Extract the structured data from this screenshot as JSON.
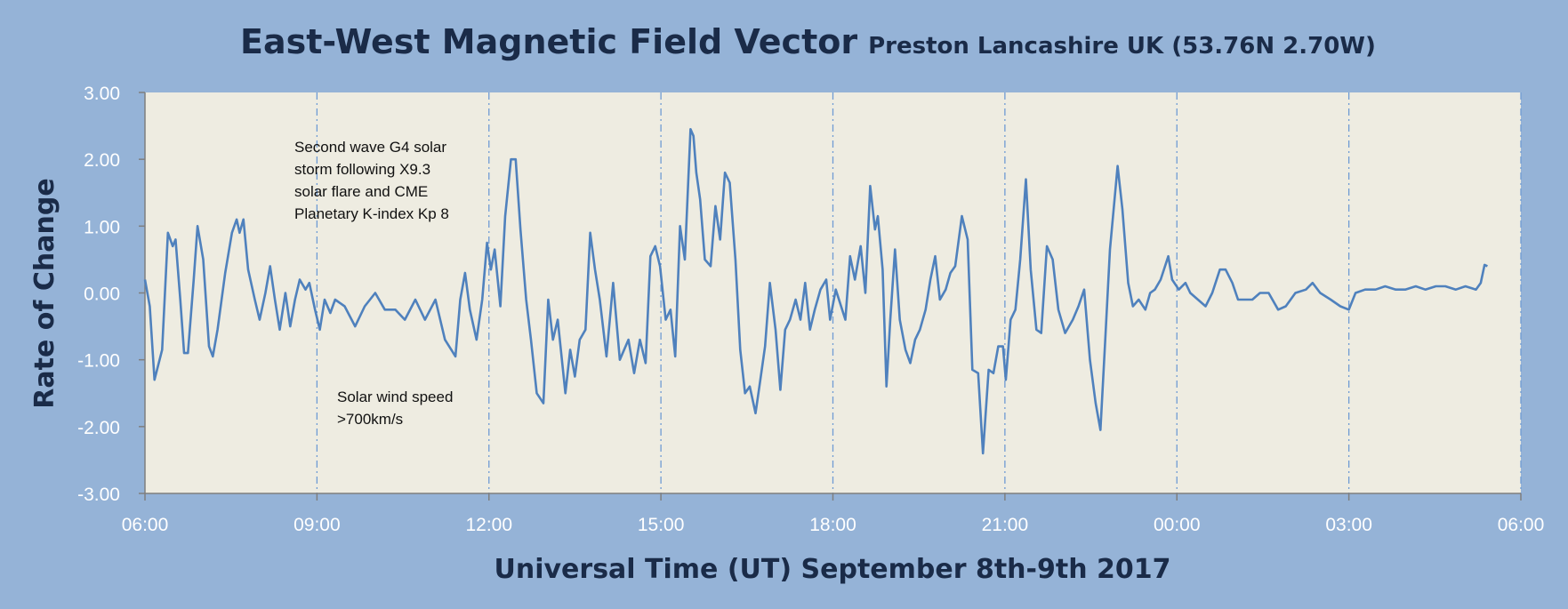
{
  "chart_data": {
    "type": "line",
    "title": "East-West Magnetic Field Vector",
    "subtitle": "Preston Lancashire UK (53.76N 2.70W)",
    "xlabel": "Universal Time (UT) September 8th-9th 2017",
    "ylabel": "Rate of Change",
    "x_units": "minutes since 06:00 UT September 8th",
    "xlim": [
      0,
      1440
    ],
    "ylim": [
      -3,
      3
    ],
    "x_tick_labels": [
      "06:00",
      "09:00",
      "12:00",
      "15:00",
      "18:00",
      "21:00",
      "00:00",
      "03:00",
      "06:00"
    ],
    "y_tick_labels": [
      "3.00",
      "2.00",
      "1.00",
      "0.00",
      "-1.00",
      "-2.00",
      "-3.00"
    ],
    "y_ticks": [
      3,
      2,
      1,
      0,
      -1,
      -2,
      -3
    ],
    "grid": "vertical dash-dot at 3-hour intervals",
    "legend": "none",
    "annotations": [
      {
        "lines": [
          "Second wave G4 solar",
          "storm following X9.3",
          "solar flare and CME",
          "Planetary K-index Kp 8"
        ]
      },
      {
        "lines": [
          "Solar wind speed",
          ">700km/s"
        ]
      }
    ],
    "series": [
      {
        "name": "East-West rate of change",
        "color": "#4f81bd",
        "x": [
          0,
          5,
          10,
          18,
          24,
          29,
          32,
          37,
          41,
          45,
          51,
          55,
          61,
          67,
          71,
          76,
          84,
          91,
          96,
          99,
          103,
          108,
          115,
          120,
          126,
          131,
          136,
          141,
          147,
          152,
          157,
          162,
          168,
          172,
          178,
          183,
          188,
          194,
          199,
          209,
          220,
          230,
          241,
          251,
          262,
          272,
          283,
          293,
          304,
          314,
          325,
          330,
          335,
          340,
          347,
          353,
          358,
          362,
          366,
          372,
          377,
          383,
          388,
          393,
          399,
          404,
          410,
          417,
          422,
          427,
          432,
          440,
          445,
          450,
          455,
          461,
          466,
          471,
          476,
          483,
          490,
          497,
          506,
          512,
          518,
          524,
          529,
          534,
          539,
          545,
          550,
          555,
          560,
          565,
          571,
          574,
          577,
          581,
          586,
          592,
          597,
          602,
          607,
          612,
          618,
          623,
          628,
          633,
          639,
          644,
          649,
          654,
          660,
          665,
          670,
          675,
          681,
          686,
          691,
          696,
          701,
          707,
          713,
          717,
          723,
          733,
          738,
          743,
          749,
          754,
          759,
          764,
          767,
          772,
          776,
          780,
          785,
          790,
          796,
          801,
          806,
          811,
          817,
          822,
          827,
          832,
          838,
          843,
          848,
          855,
          861,
          866,
          872,
          877,
          883,
          888,
          893,
          898,
          901,
          906,
          911,
          916,
          922,
          927,
          933,
          938,
          944,
          950,
          956,
          963,
          971,
          977,
          983,
          989,
          995,
          1000,
          1005,
          1010,
          1018,
          1023,
          1029,
          1034,
          1040,
          1047,
          1052,
          1057,
          1063,
          1071,
          1075,
          1082,
          1089,
          1094,
          1102,
          1110,
          1117,
          1125,
          1131,
          1138,
          1144,
          1152,
          1159,
          1167,
          1176,
          1186,
          1194,
          1204,
          1215,
          1222,
          1230,
          1241,
          1251,
          1260,
          1267,
          1277,
          1288,
          1298,
          1309,
          1319,
          1330,
          1340,
          1351,
          1361,
          1372,
          1382,
          1393,
          1398,
          1402,
          1405
        ],
        "y": [
          0.2,
          -0.2,
          -1.3,
          -0.85,
          0.9,
          0.7,
          0.8,
          -0.1,
          -0.9,
          -0.9,
          0.2,
          1.0,
          0.5,
          -0.8,
          -0.95,
          -0.55,
          0.3,
          0.9,
          1.1,
          0.9,
          1.1,
          0.35,
          -0.1,
          -0.4,
          0,
          0.4,
          -0.1,
          -0.55,
          0,
          -0.5,
          -0.1,
          0.2,
          0.05,
          0.15,
          -0.25,
          -0.55,
          -0.1,
          -0.3,
          -0.1,
          -0.2,
          -0.5,
          -0.2,
          0,
          -0.25,
          -0.25,
          -0.4,
          -0.1,
          -0.4,
          -0.1,
          -0.7,
          -0.95,
          -0.1,
          0.3,
          -0.25,
          -0.7,
          -0.1,
          0.75,
          0.35,
          0.65,
          -0.2,
          1.15,
          2.0,
          2.0,
          0.95,
          -0.1,
          -0.7,
          -1.5,
          -1.65,
          -0.1,
          -0.7,
          -0.4,
          -1.5,
          -0.85,
          -1.25,
          -0.7,
          -0.55,
          0.9,
          0.35,
          -0.1,
          -0.95,
          0.15,
          -1.0,
          -0.7,
          -1.2,
          -0.7,
          -1.05,
          0.55,
          0.7,
          0.4,
          -0.4,
          -0.25,
          -0.95,
          1.0,
          0.5,
          2.45,
          2.35,
          1.8,
          1.4,
          0.5,
          0.4,
          1.3,
          0.8,
          1.8,
          1.65,
          0.5,
          -0.85,
          -1.5,
          -1.4,
          -1.8,
          -1.3,
          -0.8,
          0.15,
          -0.55,
          -1.45,
          -0.55,
          -0.4,
          -0.1,
          -0.4,
          0.15,
          -0.55,
          -0.25,
          0.05,
          0.2,
          -0.4,
          0.05,
          -0.4,
          0.55,
          0.2,
          0.7,
          0,
          1.6,
          0.95,
          1.15,
          0.35,
          -1.4,
          -0.4,
          0.65,
          -0.4,
          -0.85,
          -1.05,
          -0.7,
          -0.55,
          -0.25,
          0.2,
          0.55,
          -0.1,
          0.05,
          0.3,
          0.4,
          1.15,
          0.8,
          -1.15,
          -1.2,
          -2.4,
          -1.15,
          -1.2,
          -0.8,
          -0.8,
          -1.3,
          -0.4,
          -0.25,
          0.5,
          1.7,
          0.35,
          -0.55,
          -0.6,
          0.7,
          0.5,
          -0.25,
          -0.6,
          -0.4,
          -0.2,
          0.05,
          -1.0,
          -1.65,
          -2.05,
          -0.7,
          0.65,
          1.9,
          1.25,
          0.15,
          -0.2,
          -0.1,
          -0.25,
          0,
          0.05,
          0.2,
          0.55,
          0.2,
          0.05,
          0.15,
          0,
          -0.1,
          -0.2,
          0,
          0.35,
          0.35,
          0.15,
          -0.1,
          -0.1,
          -0.1,
          0,
          0,
          -0.25,
          -0.2,
          0,
          0.05,
          0.15,
          0,
          -0.1,
          -0.2,
          -0.25,
          0,
          0.05,
          0.05,
          0.1,
          0.05,
          0.05,
          0.1,
          0.05,
          0.1,
          0.1,
          0.05,
          0.1,
          0.05,
          0.15,
          0.42,
          0.4
        ]
      }
    ]
  }
}
